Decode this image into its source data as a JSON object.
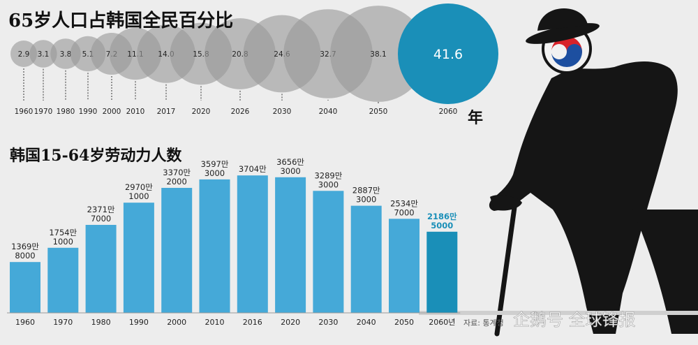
{
  "chart_data": [
    {
      "type": "scatter",
      "title": "65岁人口占韩国全民百分比",
      "x": [
        "1960",
        "1970",
        "1980",
        "1990",
        "2000",
        "2010",
        "2017",
        "2020",
        "2026",
        "2030",
        "2040",
        "2050",
        "2060"
      ],
      "values": [
        2.9,
        3.1,
        3.8,
        5.1,
        7.2,
        11.1,
        14.0,
        15.8,
        20.8,
        24.6,
        32.7,
        38.1,
        41.6
      ],
      "value_labels": [
        "2.9",
        "3.1",
        "3.8",
        "5.1",
        "7.2",
        "11.1",
        "14.0",
        "15.8",
        "20.8",
        "24.6",
        "32.7",
        "38.1",
        "41.6"
      ],
      "unit_label": "年",
      "highlight_color": "#1a8fb8",
      "bubble_color": "#9a9a9a"
    },
    {
      "type": "bar",
      "title": "韩国15-64岁劳动力人数",
      "categories": [
        "1960",
        "1970",
        "1980",
        "1990",
        "2000",
        "2010",
        "2016",
        "2020",
        "2030",
        "2040",
        "2050",
        "2060년"
      ],
      "values": [
        13698000,
        17541000,
        23717000,
        29701000,
        33702000,
        35973000,
        37040000,
        36563000,
        32893000,
        28873000,
        25347000,
        21865000
      ],
      "value_labels": [
        [
          "1369만",
          "8000"
        ],
        [
          "1754만",
          "1000"
        ],
        [
          "2371만",
          "7000"
        ],
        [
          "2970만",
          "1000"
        ],
        [
          "3370만",
          "2000"
        ],
        [
          "3597만",
          "3000"
        ],
        [
          "3704만",
          ""
        ],
        [
          "3656만",
          "3000"
        ],
        [
          "3289만",
          "3000"
        ],
        [
          "2887만",
          "3000"
        ],
        [
          "2534만",
          "7000"
        ],
        [
          "2186만",
          "5000"
        ]
      ],
      "ylim": [
        0,
        40000000
      ],
      "bar_color": "#45a9d8",
      "highlight_color": "#1a8fb8"
    }
  ],
  "source_note": "자료: 통계청",
  "watermark": "企鹅号 全球锋报",
  "flag_colors": {
    "red": "#d8232a",
    "blue": "#1d4fa0"
  }
}
